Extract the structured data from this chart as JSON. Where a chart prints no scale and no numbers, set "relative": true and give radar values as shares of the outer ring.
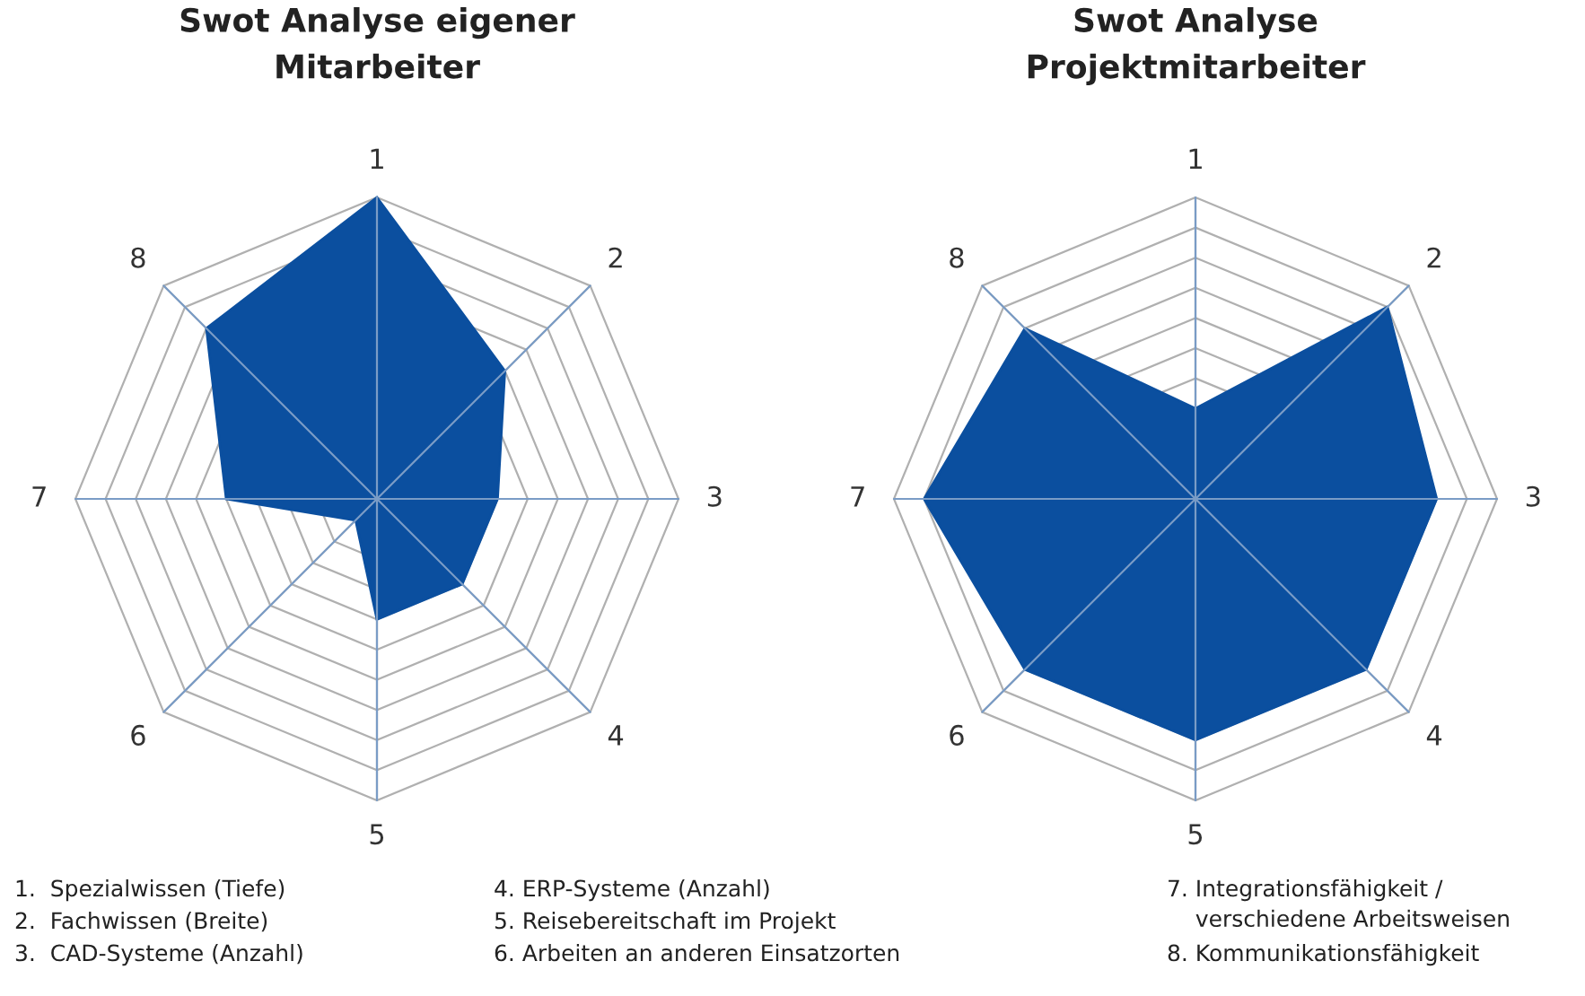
{
  "chart_data": [
    {
      "type": "radar",
      "title": "Swot Analyse eigener\nMitarbeiter",
      "relative": true,
      "grid": true,
      "categories": [
        "1",
        "2",
        "3",
        "4",
        "5",
        "6",
        "7",
        "8"
      ],
      "series": [
        {
          "color": "#0b4f9f",
          "values": [
            1.0,
            0.6,
            0.4,
            0.4,
            0.4,
            0.1,
            0.5,
            0.8
          ]
        }
      ],
      "annotations": [
        "1.  Spezialwissen (Tiefe)",
        "2.  Fachwissen (Breite)",
        "3.  CAD-Systeme (Anzahl)",
        "4. ERP-Systeme (Anzahl)",
        "5. Reisebereitschaft im Projekt",
        "6. Arbeiten an anderen Einsatzorten",
        "7. Integrationsfähigkeit /\n    verschiedene Arbeitsweisen",
        "8. Kommunikationsfähigkeit"
      ]
    },
    {
      "type": "radar",
      "title": "Swot Analyse\nProjektmitarbeiter",
      "relative": true,
      "grid": true,
      "categories": [
        "1",
        "2",
        "3",
        "4",
        "5",
        "6",
        "7",
        "8"
      ],
      "series": [
        {
          "color": "#0b4f9f",
          "values": [
            0.3,
            0.9,
            0.8,
            0.8,
            0.8,
            0.8,
            0.9,
            0.8
          ]
        }
      ]
    }
  ]
}
